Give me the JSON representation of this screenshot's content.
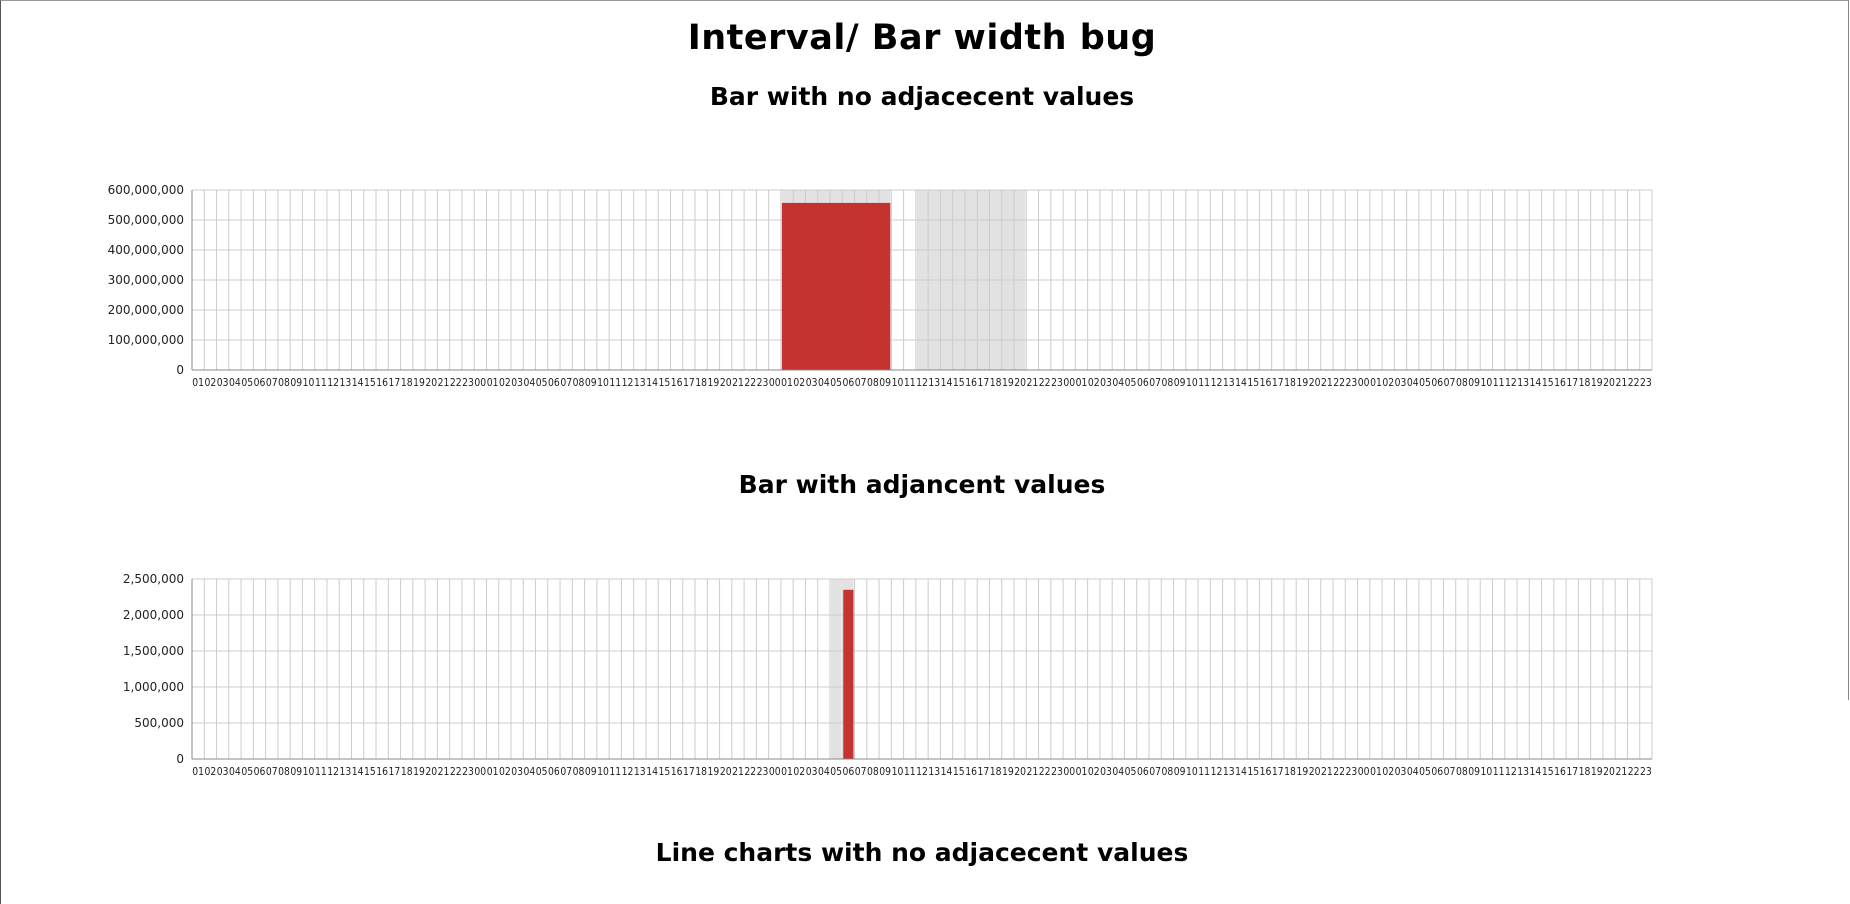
{
  "page": {
    "title": "Interval/ Bar width bug",
    "section1_title": "Bar with no adjacecent values",
    "section2_title": "Bar with adjancent values",
    "section3_title": "Line charts with no adjacecent values"
  },
  "colors": {
    "bar": "#c43330",
    "highlight": "#e2e2e2",
    "grid": "#cccccc",
    "axis": "#888888"
  },
  "hour_labels": [
    "01",
    "02",
    "03",
    "04",
    "05",
    "06",
    "07",
    "08",
    "09",
    "10",
    "11",
    "12",
    "13",
    "14",
    "15",
    "16",
    "17",
    "18",
    "19",
    "20",
    "21",
    "22",
    "23",
    "00",
    "01",
    "02",
    "03",
    "04",
    "05",
    "06",
    "07",
    "08",
    "09",
    "10",
    "11",
    "12",
    "13",
    "14",
    "15",
    "16",
    "17",
    "18",
    "19",
    "20",
    "21",
    "22",
    "23",
    "00",
    "01",
    "02",
    "03",
    "04",
    "05",
    "06",
    "07",
    "08",
    "09",
    "10",
    "11",
    "12",
    "13",
    "14",
    "15",
    "16",
    "17",
    "18",
    "19",
    "20",
    "21",
    "22",
    "23",
    "00",
    "01",
    "02",
    "03",
    "04",
    "05",
    "06",
    "07",
    "08",
    "09",
    "10",
    "11",
    "12",
    "13",
    "14",
    "15",
    "16",
    "17",
    "18",
    "19",
    "20",
    "21",
    "22",
    "23",
    "00",
    "01",
    "02",
    "03",
    "04",
    "05",
    "06",
    "07",
    "08",
    "09",
    "10",
    "11",
    "12",
    "13",
    "14",
    "15",
    "16",
    "17",
    "18",
    "19",
    "20",
    "21",
    "22",
    "23"
  ],
  "chart_data": [
    {
      "type": "bar",
      "title": "Bar with no adjacecent values",
      "x_ticks": "hour_labels",
      "yticks": [
        "0",
        "100,000,000",
        "200,000,000",
        "300,000,000",
        "400,000,000",
        "500,000,000",
        "600,000,000"
      ],
      "ylim": [
        0,
        600000000
      ],
      "grid": true,
      "bars": [
        {
          "from_index": 48,
          "to_index": 57,
          "value": 557000000
        }
      ],
      "highlights": [
        {
          "from_index": 48,
          "to_index": 57
        },
        {
          "from_index": 59,
          "to_index": 68
        }
      ]
    },
    {
      "type": "bar",
      "title": "Bar with adjancent values",
      "x_ticks": "hour_labels",
      "yticks": [
        "0",
        "500,000",
        "1,000,000",
        "1,500,000",
        "2,000,000",
        "2,500,000"
      ],
      "ylim": [
        0,
        2500000
      ],
      "grid": true,
      "bars": [
        {
          "from_index": 53,
          "to_index": 54,
          "value": 2350000
        }
      ],
      "highlights": [
        {
          "from_index": 52,
          "to_index": 53
        },
        {
          "from_index": 53,
          "to_index": 54
        }
      ]
    }
  ]
}
